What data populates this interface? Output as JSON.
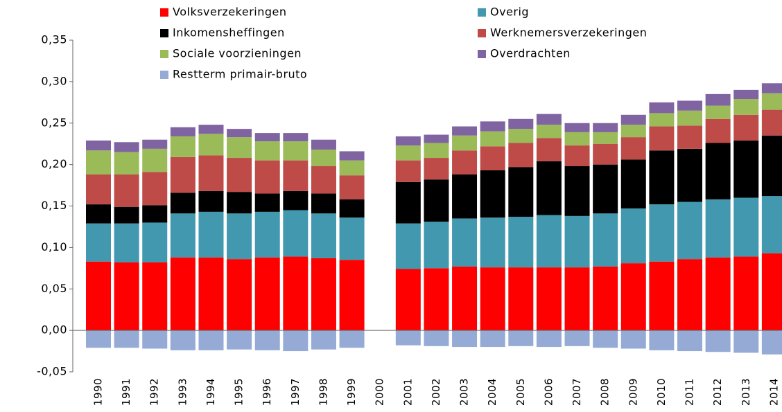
{
  "chart_data": {
    "type": "stacked-bar",
    "categories": [
      "1990",
      "1991",
      "1992",
      "1993",
      "1994",
      "1995",
      "1996",
      "1997",
      "1998",
      "1999",
      "2000",
      "2001",
      "2002",
      "2003",
      "2004",
      "2005",
      "2006",
      "2007",
      "2008",
      "2009",
      "2010",
      "2011",
      "2012",
      "2013",
      "2014"
    ],
    "series": [
      {
        "name": "Volksverzekeringen",
        "color": "#ff0000",
        "values": [
          0.083,
          0.082,
          0.082,
          0.088,
          0.088,
          0.086,
          0.088,
          0.089,
          0.087,
          0.085,
          null,
          0.074,
          0.075,
          0.077,
          0.076,
          0.076,
          0.076,
          0.076,
          0.077,
          0.081,
          0.083,
          0.086,
          0.088,
          0.089,
          0.093
        ]
      },
      {
        "name": "Overig",
        "color": "#4198af",
        "values": [
          0.046,
          0.047,
          0.048,
          0.053,
          0.055,
          0.055,
          0.055,
          0.056,
          0.054,
          0.051,
          null,
          0.055,
          0.056,
          0.058,
          0.06,
          0.061,
          0.063,
          0.062,
          0.064,
          0.066,
          0.069,
          0.069,
          0.07,
          0.071,
          0.069
        ]
      },
      {
        "name": "Inkomensheffingen",
        "color": "#000000",
        "values": [
          0.023,
          0.02,
          0.021,
          0.025,
          0.025,
          0.026,
          0.022,
          0.023,
          0.024,
          0.022,
          null,
          0.05,
          0.051,
          0.053,
          0.057,
          0.06,
          0.065,
          0.06,
          0.059,
          0.059,
          0.065,
          0.064,
          0.068,
          0.069,
          0.073
        ]
      },
      {
        "name": "Werknemersverzekeringen",
        "color": "#be4b48",
        "values": [
          0.036,
          0.039,
          0.04,
          0.043,
          0.043,
          0.041,
          0.04,
          0.037,
          0.033,
          0.029,
          null,
          0.026,
          0.026,
          0.029,
          0.029,
          0.029,
          0.028,
          0.025,
          0.025,
          0.027,
          0.029,
          0.028,
          0.029,
          0.031,
          0.031
        ]
      },
      {
        "name": "Sociale voorzieningen",
        "color": "#9bbb59",
        "values": [
          0.029,
          0.027,
          0.028,
          0.025,
          0.026,
          0.025,
          0.023,
          0.023,
          0.02,
          0.018,
          null,
          0.018,
          0.018,
          0.018,
          0.018,
          0.017,
          0.016,
          0.016,
          0.014,
          0.015,
          0.016,
          0.018,
          0.016,
          0.019,
          0.02
        ]
      },
      {
        "name": "Overdrachten",
        "color": "#8064a2",
        "values": [
          0.012,
          0.012,
          0.011,
          0.011,
          0.011,
          0.01,
          0.01,
          0.01,
          0.012,
          0.011,
          null,
          0.011,
          0.01,
          0.011,
          0.012,
          0.012,
          0.013,
          0.011,
          0.011,
          0.012,
          0.013,
          0.012,
          0.014,
          0.011,
          0.012
        ]
      },
      {
        "name": "Restterm primair-bruto",
        "color": "#95abd6",
        "values": [
          -0.021,
          -0.021,
          -0.022,
          -0.024,
          -0.024,
          -0.023,
          -0.024,
          -0.025,
          -0.023,
          -0.021,
          null,
          -0.018,
          -0.019,
          -0.02,
          -0.02,
          -0.019,
          -0.02,
          -0.019,
          -0.021,
          -0.022,
          -0.024,
          -0.025,
          -0.026,
          -0.027,
          -0.029
        ]
      }
    ],
    "ylim": [
      -0.05,
      0.35
    ],
    "yticks": [
      {
        "value": -0.05,
        "label": "-0,05"
      },
      {
        "value": 0,
        "label": "0,00"
      },
      {
        "value": 0.05,
        "label": "0,05"
      },
      {
        "value": 0.1,
        "label": "0,10"
      },
      {
        "value": 0.15,
        "label": "0,15"
      },
      {
        "value": 0.2,
        "label": "0,20"
      },
      {
        "value": 0.25,
        "label": "0,25"
      },
      {
        "value": 0.3,
        "label": "0,30"
      },
      {
        "value": 0.35,
        "label": "0,35"
      }
    ],
    "legend": "top"
  }
}
